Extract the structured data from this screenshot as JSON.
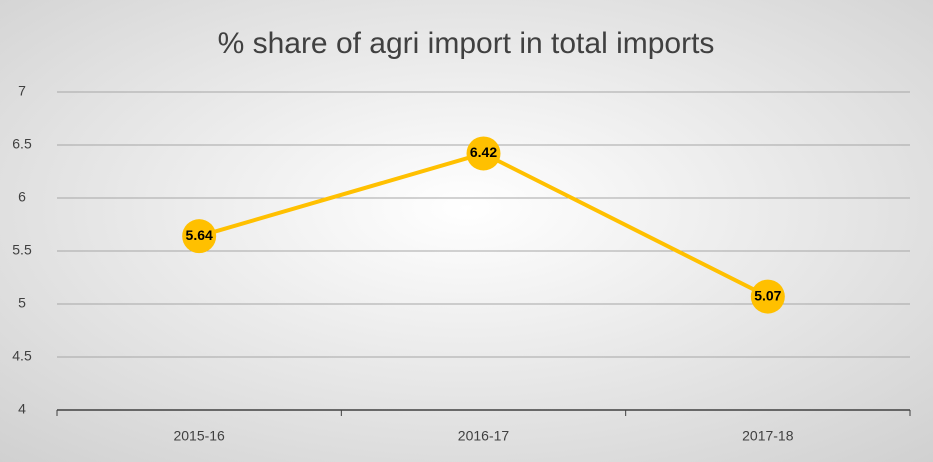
{
  "chart_data": {
    "type": "line",
    "title": "% share of agri import in total imports",
    "categories": [
      "2015-16",
      "2016-17",
      "2017-18"
    ],
    "values": [
      5.64,
      6.42,
      5.07
    ],
    "color": "#ffc000",
    "ylim": [
      4,
      7
    ],
    "yticks": [
      4,
      4.5,
      5,
      5.5,
      6,
      6.5,
      7
    ],
    "grid": true
  }
}
